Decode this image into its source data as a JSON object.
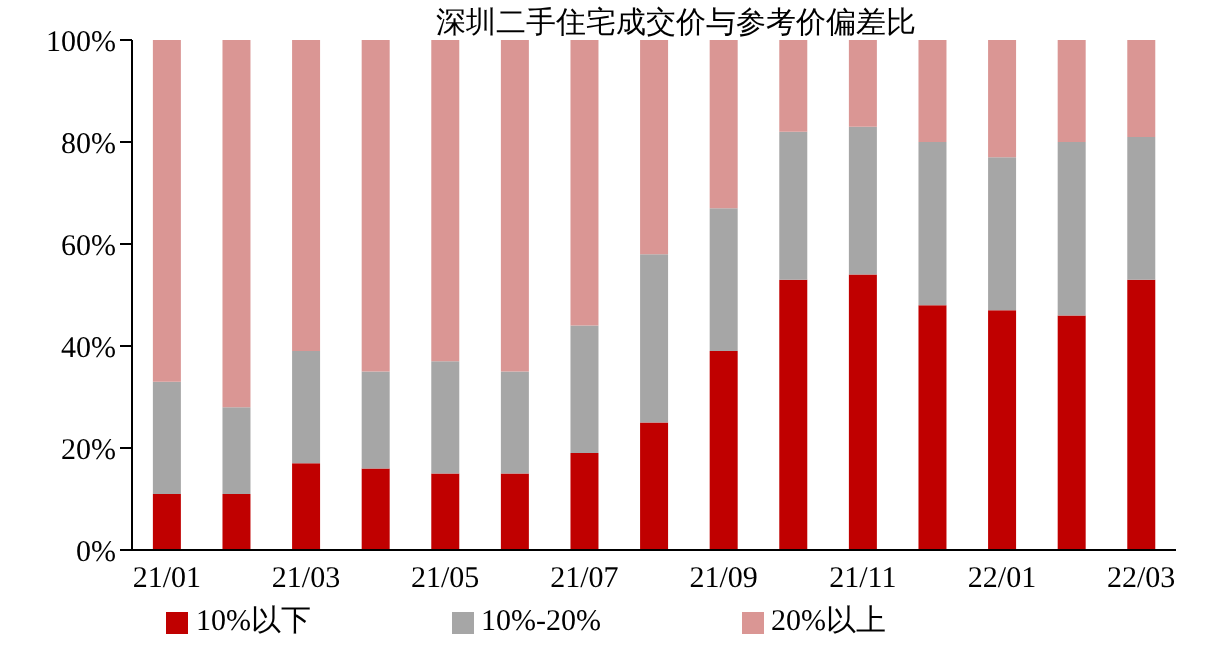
{
  "chart_data": {
    "type": "bar",
    "title": "深圳二手住宅成交价与参考价偏差比",
    "stacked": true,
    "categories": [
      "21/01",
      null,
      "21/03",
      null,
      "21/05",
      null,
      "21/07",
      null,
      "21/09",
      null,
      "21/11",
      null,
      "22/01",
      null,
      "22/03"
    ],
    "series": [
      {
        "name": "10%以下",
        "color": "#c00000",
        "values": [
          11,
          11,
          17,
          16,
          15,
          15,
          19,
          25,
          39,
          53,
          54,
          48,
          47,
          46,
          53
        ]
      },
      {
        "name": "10%-20%",
        "color": "#a6a6a6",
        "values": [
          22,
          17,
          22,
          19,
          22,
          20,
          25,
          33,
          28,
          29,
          29,
          32,
          30,
          34,
          28
        ]
      },
      {
        "name": "20%以上",
        "color": "#da9694",
        "values": [
          67,
          72,
          61,
          65,
          63,
          65,
          56,
          42,
          33,
          18,
          17,
          20,
          23,
          20,
          19
        ]
      }
    ],
    "ylim": [
      0,
      100
    ],
    "yticks": [
      {
        "value": 0,
        "label": "0%"
      },
      {
        "value": 20,
        "label": "20%"
      },
      {
        "value": 40,
        "label": "40%"
      },
      {
        "value": 60,
        "label": "60%"
      },
      {
        "value": 80,
        "label": "80%"
      },
      {
        "value": 100,
        "label": "100%"
      }
    ],
    "grid": false,
    "legend": "bottom"
  }
}
